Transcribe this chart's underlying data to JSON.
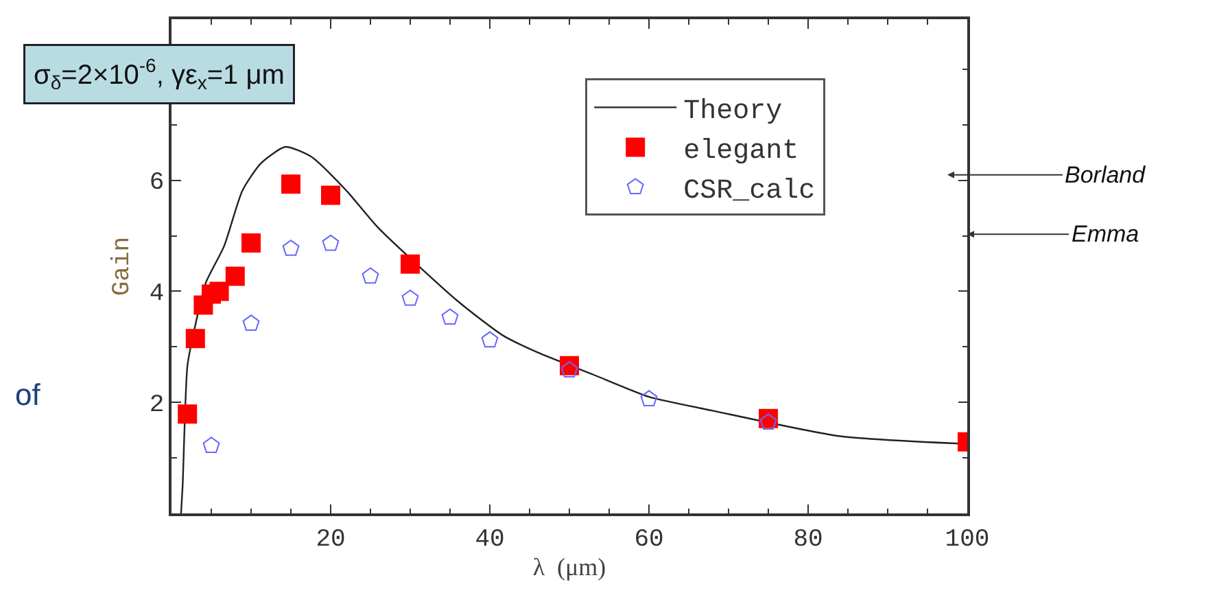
{
  "chart_data": {
    "type": "line",
    "xlabel": "λ  (μm)",
    "ylabel": "Gain",
    "xlim": [
      0,
      100
    ],
    "xticks": [
      20,
      40,
      60,
      80,
      100
    ],
    "ylim": [
      0,
      8.9
    ],
    "yticks": [
      2,
      4,
      6
    ],
    "grid": false,
    "legend": "top right",
    "series": [
      {
        "name": "Theory",
        "color": "#222222",
        "marker": "none",
        "line_style": "solid",
        "x": [
          1.2,
          1.4,
          2.0,
          2.9,
          4.3,
          6.6,
          8.9,
          11.2,
          14.3,
          17.5,
          22,
          26,
          36,
          41.7,
          46,
          53,
          60,
          68,
          84,
          100
        ],
        "values": [
          0,
          0.5,
          2.66,
          3.33,
          4.15,
          4.81,
          5.81,
          6.3,
          6.6,
          6.43,
          5.81,
          5.14,
          3.82,
          3.2,
          2.9,
          2.5,
          2.1,
          1.85,
          1.39,
          1.25
        ]
      },
      {
        "name": "elegant",
        "type": "scatter",
        "color": "#ff0000",
        "marker": "square",
        "x": [
          2,
          3,
          4,
          5,
          6,
          8,
          10,
          15,
          20,
          30,
          50,
          75,
          100
        ],
        "values": [
          1.79,
          3.15,
          3.75,
          3.95,
          4.0,
          4.27,
          4.87,
          5.93,
          5.73,
          4.49,
          2.66,
          1.71,
          1.29
        ]
      },
      {
        "name": "CSR_calc",
        "type": "scatter",
        "color": "#6666ff",
        "x": [
          5,
          10,
          15,
          20,
          25,
          30,
          35,
          40,
          50,
          60,
          75
        ],
        "values": [
          1.22,
          3.42,
          4.77,
          4.86,
          4.27,
          3.87,
          3.53,
          3.12,
          2.58,
          2.06,
          1.64
        ]
      }
    ],
    "annotations": [
      "σ$_{δ}$=2×10$^{-6}$, γε$_{x}$=1 μm",
      "Borland",
      "Emma",
      "of"
    ]
  }
}
